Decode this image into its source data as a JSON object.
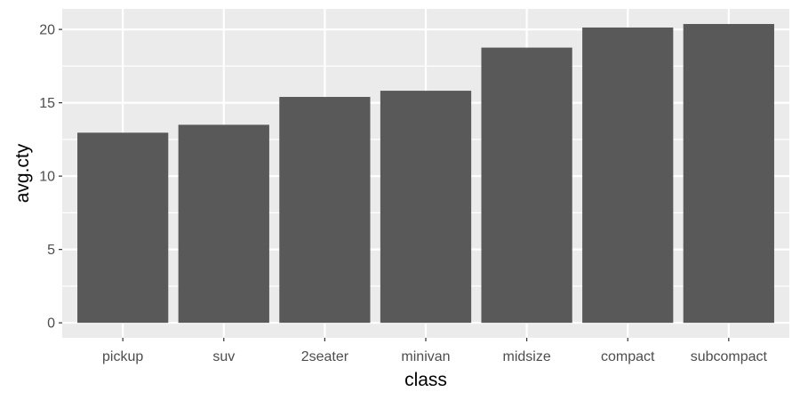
{
  "chart_data": {
    "type": "bar",
    "title": "",
    "xlabel": "class",
    "ylabel": "avg.cty",
    "categories": [
      "pickup",
      "suv",
      "2seater",
      "minivan",
      "midsize",
      "compact",
      "subcompact"
    ],
    "values": [
      12.96,
      13.5,
      15.4,
      15.82,
      18.76,
      20.13,
      20.37
    ],
    "ylim": [
      -1.02,
      21.4
    ],
    "yticks": [
      0,
      5,
      10,
      15,
      20
    ],
    "grid": true,
    "legend": "none",
    "colors": {
      "bar": "#595959",
      "panel": "#ebebeb",
      "grid": "#ffffff",
      "tick": "#333333"
    }
  }
}
